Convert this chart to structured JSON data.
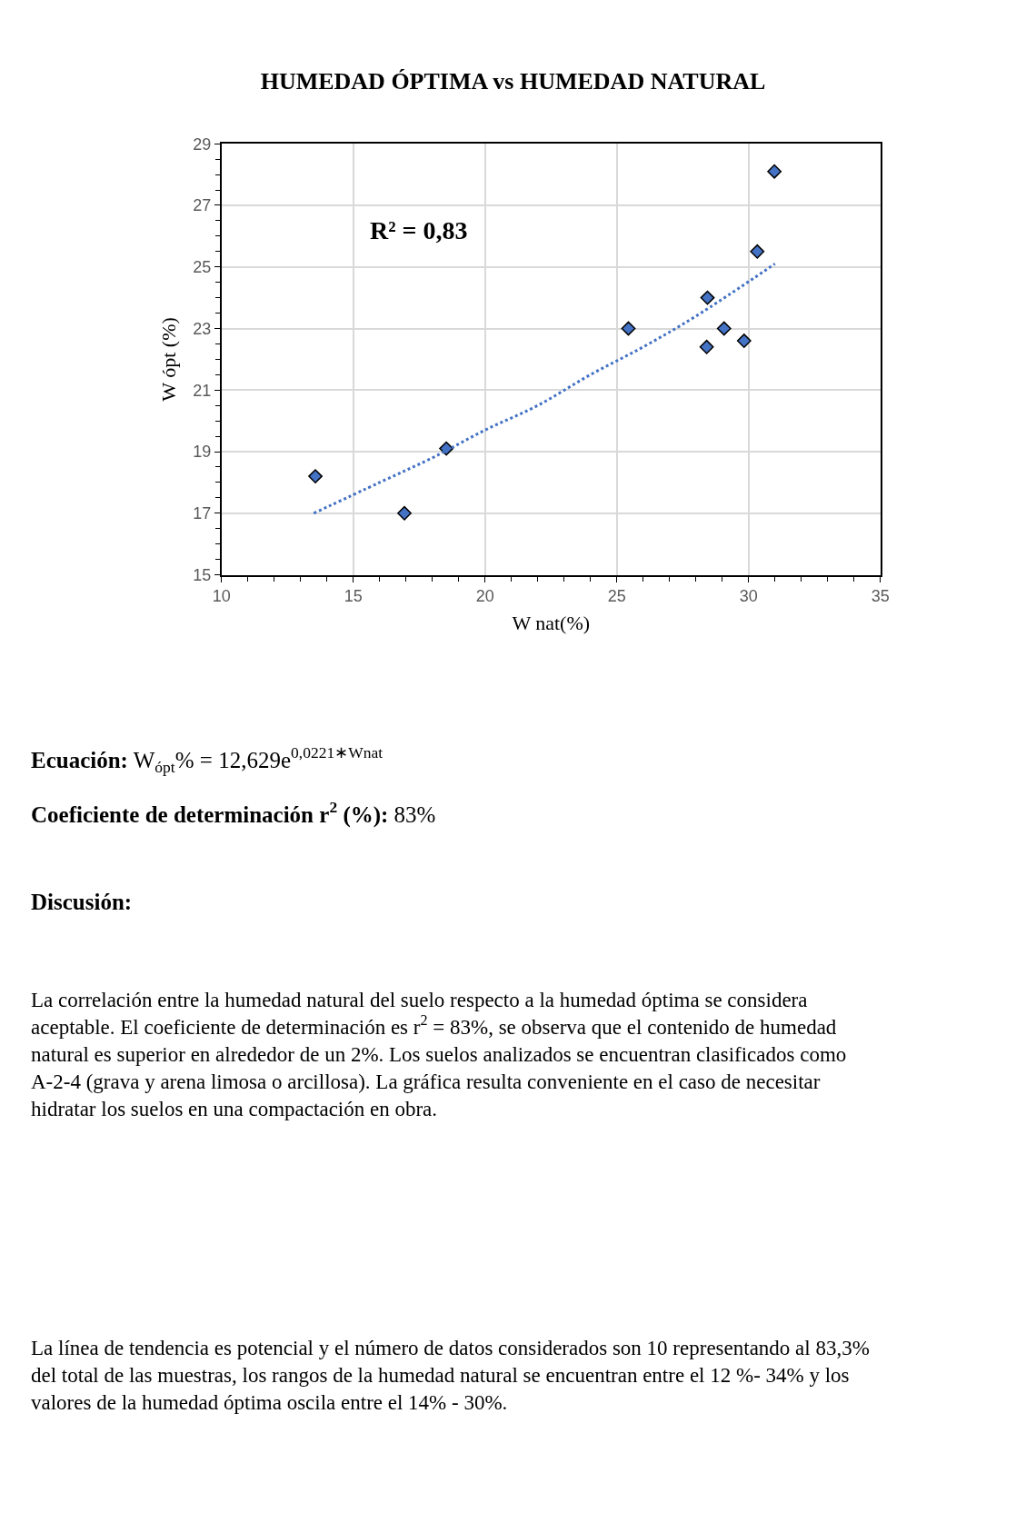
{
  "chart_data": {
    "type": "scatter",
    "title": "HUMEDAD ÓPTIMA vs HUMEDAD NATURAL",
    "xlabel": "W nat(%)",
    "ylabel": "W ópt (%)",
    "x": [
      13.56,
      16.94,
      18.53,
      25.44,
      28.44,
      28.41,
      29.07,
      29.83,
      30.33,
      30.98
    ],
    "series": [
      {
        "color": "#4472c4",
        "marker": "diamond",
        "values": [
          18.2,
          17.0,
          19.1,
          23.0,
          24.0,
          22.4,
          23.0,
          22.6,
          25.5,
          28.1
        ]
      },
      {
        "type": "line",
        "color": "#4472c4",
        "line_style": "dotted",
        "marker": "none",
        "x": [
          13.5,
          16,
          18,
          20,
          22,
          24,
          26,
          28,
          31
        ],
        "values": [
          17.0,
          18.0,
          18.8,
          19.7,
          20.5,
          21.5,
          22.4,
          23.4,
          25.1
        ]
      }
    ],
    "xlim": [
      10,
      35
    ],
    "xticks": [
      10,
      15,
      20,
      25,
      30,
      35
    ],
    "ylim": [
      15,
      29
    ],
    "yticks": [
      15,
      17,
      19,
      21,
      23,
      25,
      27,
      29
    ],
    "grid": true,
    "legend": false,
    "annotations": [
      "R² = 0,83",
      "Ecuación: W$_{ópt}$% = 12,629e$^{0,0221∗Wnat}$",
      "Coeficiente de determinación r$^{2}$ (%): 83%",
      "Discusión:",
      "La correlación entre la humedad natural del suelo respecto a la humedad óptima se considera aceptable. El coeficiente de determinación es r$^{2}$ = 83%, se observa que el contenido de humedad natural es superior en alrededor de un 2%. Los suelos analizados se encuentran clasificados como A-2-4 (grava y arena limosa o arcillosa). La gráfica resulta conveniente en el caso de necesitar hidratar los suelos en una compactación en obra.",
      "La línea de tendencia es potencial y el número de datos considerados son 10 representando al 83,3% del total de las muestras, los rangos de la humedad natural se encuentran entre el 12 %- 34% y los valores de la humedad óptima oscila entre el 14% - 30%."
    ]
  }
}
